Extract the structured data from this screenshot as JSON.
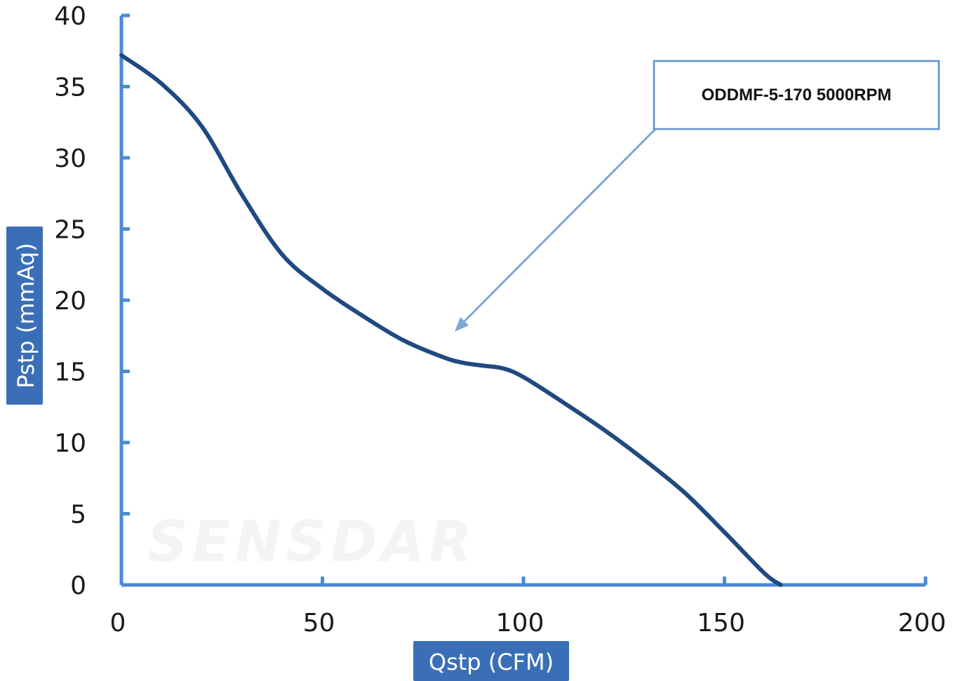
{
  "chart_data": {
    "type": "line",
    "xlabel": "Qstp (CFM)",
    "ylabel": "Pstp (mmAq)",
    "xlim": [
      0,
      200
    ],
    "ylim": [
      0,
      40
    ],
    "x_ticks": [
      0,
      50,
      100,
      150,
      200
    ],
    "y_ticks": [
      0,
      5,
      10,
      15,
      20,
      25,
      30,
      35,
      40
    ],
    "grid": false,
    "series": [
      {
        "name": "ODDMF-5-170 5000RPM",
        "x": [
          0,
          10,
          20,
          30,
          40,
          50,
          60,
          70,
          80,
          85,
          90,
          95,
          100,
          110,
          120,
          130,
          140,
          150,
          160,
          164
        ],
        "y": [
          37.2,
          35.2,
          32.2,
          27.4,
          23.2,
          20.8,
          18.9,
          17.2,
          16.0,
          15.6,
          15.4,
          15.2,
          14.6,
          12.8,
          10.9,
          8.8,
          6.5,
          3.7,
          0.8,
          0
        ]
      }
    ],
    "annotation": {
      "text": "ODDMF-5-170 5000RPM",
      "points_to": {
        "x": 83,
        "y": 17.9
      }
    }
  },
  "watermark": "SENSDAR",
  "colors": {
    "axis": "#4a8ad4",
    "line": "#1f4a80",
    "label_box": "#3a6fb7",
    "callout_border": "#5d8fcb",
    "arrow": "#7da6d6"
  }
}
